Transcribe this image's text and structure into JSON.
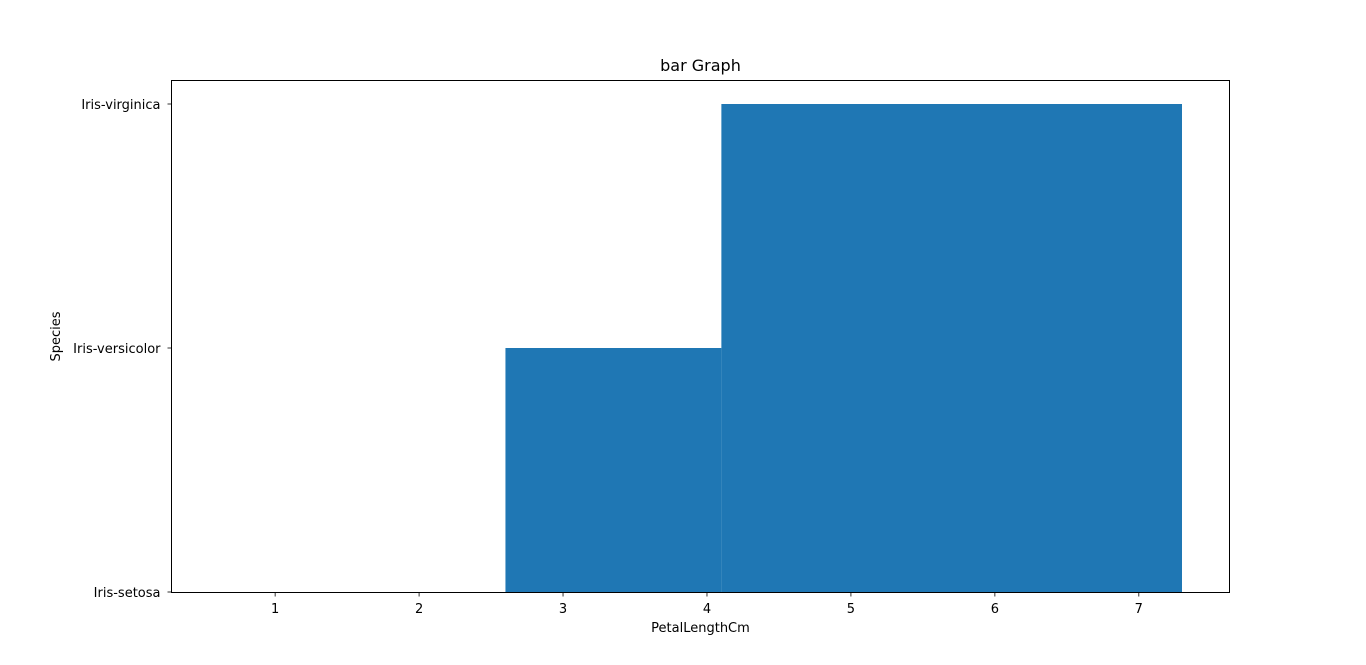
{
  "chart_data": {
    "type": "bar",
    "title": "bar Graph",
    "xlabel": "PetalLengthCm",
    "ylabel": "Species",
    "y_categories": [
      "Iris-setosa",
      "Iris-versicolor",
      "Iris-virginica"
    ],
    "x_ticks": [
      1,
      2,
      3,
      4,
      5,
      6,
      7
    ],
    "xlim": [
      0.28,
      7.63
    ],
    "bars": [
      {
        "x_start": 2.6,
        "x_end": 4.1,
        "value": "Iris-versicolor"
      },
      {
        "x_start": 4.1,
        "x_end": 7.3,
        "value": "Iris-virginica"
      }
    ],
    "bar_color": "#1f77b4",
    "grid": false,
    "legend": false
  }
}
